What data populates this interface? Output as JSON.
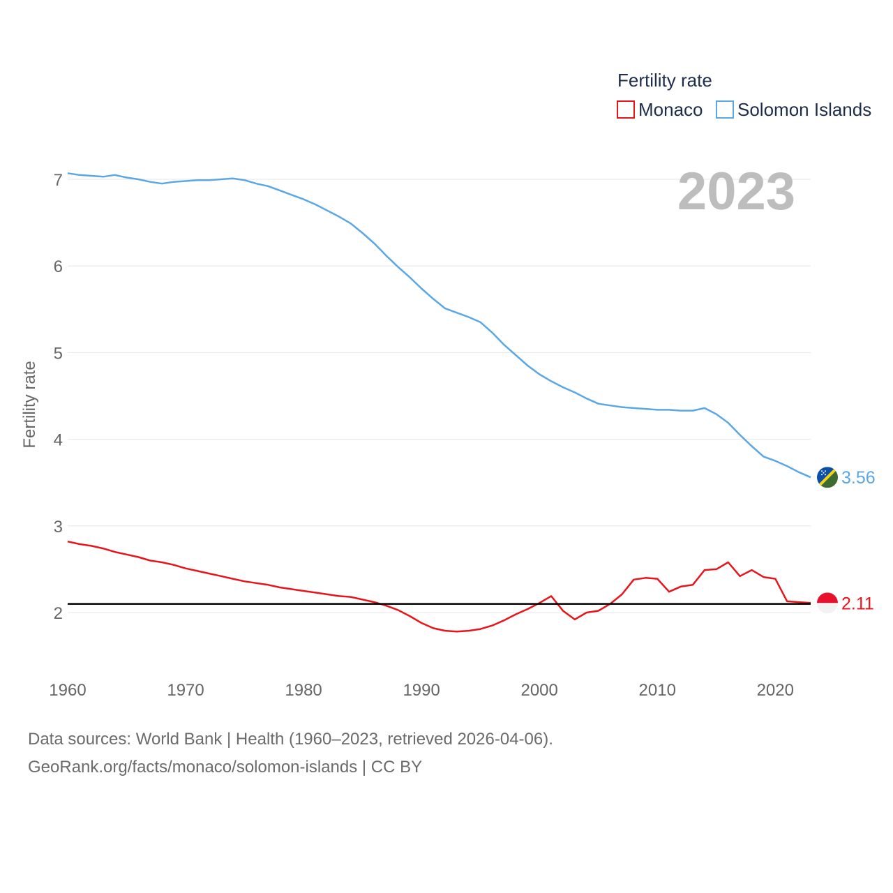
{
  "chart_data": {
    "type": "line",
    "legend_title": "Fertility rate",
    "ylabel": "Fertility rate",
    "year_label": "2023",
    "x": [
      1960,
      1961,
      1962,
      1963,
      1964,
      1965,
      1966,
      1967,
      1968,
      1969,
      1970,
      1971,
      1972,
      1973,
      1974,
      1975,
      1976,
      1977,
      1978,
      1979,
      1980,
      1981,
      1982,
      1983,
      1984,
      1985,
      1986,
      1987,
      1988,
      1989,
      1990,
      1991,
      1992,
      1993,
      1994,
      1995,
      1996,
      1997,
      1998,
      1999,
      2000,
      2001,
      2002,
      2003,
      2004,
      2005,
      2006,
      2007,
      2008,
      2009,
      2010,
      2011,
      2012,
      2013,
      2014,
      2015,
      2016,
      2017,
      2018,
      2019,
      2020,
      2021,
      2022,
      2023
    ],
    "xlim": [
      1960,
      2023
    ],
    "ylim": [
      1.5,
      7.2
    ],
    "x_ticks": [
      "1960",
      "1970",
      "1980",
      "1990",
      "2000",
      "2010",
      "2020"
    ],
    "y_ticks": [
      "2",
      "3",
      "4",
      "5",
      "6",
      "7"
    ],
    "reference_line": 2.1,
    "series": [
      {
        "name": "Monaco",
        "color": "#e8141b",
        "end_label": "2.11",
        "flag": "monaco-flag",
        "values": [
          2.82,
          2.79,
          2.77,
          2.74,
          2.7,
          2.67,
          2.64,
          2.6,
          2.58,
          2.55,
          2.51,
          2.48,
          2.45,
          2.42,
          2.39,
          2.36,
          2.34,
          2.32,
          2.29,
          2.27,
          2.25,
          2.23,
          2.21,
          2.19,
          2.18,
          2.15,
          2.12,
          2.08,
          2.03,
          1.96,
          1.88,
          1.82,
          1.79,
          1.78,
          1.79,
          1.81,
          1.85,
          1.91,
          1.98,
          2.04,
          2.11,
          2.19,
          2.02,
          1.92,
          2.0,
          2.02,
          2.1,
          2.21,
          2.38,
          2.4,
          2.39,
          2.24,
          2.3,
          2.32,
          2.49,
          2.5,
          2.58,
          2.42,
          2.49,
          2.41,
          2.39,
          2.13,
          2.12,
          2.11
        ]
      },
      {
        "name": "Solomon Islands",
        "color": "#5aa7e6",
        "end_label": "3.56",
        "flag": "solomon-islands-flag",
        "values": [
          7.07,
          7.05,
          7.04,
          7.03,
          7.05,
          7.02,
          7.0,
          6.97,
          6.95,
          6.97,
          6.98,
          6.99,
          6.99,
          7.0,
          7.01,
          6.99,
          6.95,
          6.92,
          6.87,
          6.82,
          6.77,
          6.71,
          6.64,
          6.57,
          6.49,
          6.38,
          6.26,
          6.12,
          5.99,
          5.87,
          5.74,
          5.62,
          5.51,
          5.46,
          5.41,
          5.35,
          5.23,
          5.09,
          4.97,
          4.85,
          4.75,
          4.67,
          4.6,
          4.54,
          4.47,
          4.41,
          4.39,
          4.37,
          4.36,
          4.35,
          4.34,
          4.34,
          4.33,
          4.33,
          4.36,
          4.29,
          4.19,
          4.05,
          3.92,
          3.8,
          3.75,
          3.69,
          3.62,
          3.56
        ]
      }
    ]
  },
  "source": {
    "line1": "Data sources: World Bank | Health (1960–2023, retrieved 2026-04-06).",
    "line2": "GeoRank.org/facts/monaco/solomon-islands | CC BY"
  }
}
